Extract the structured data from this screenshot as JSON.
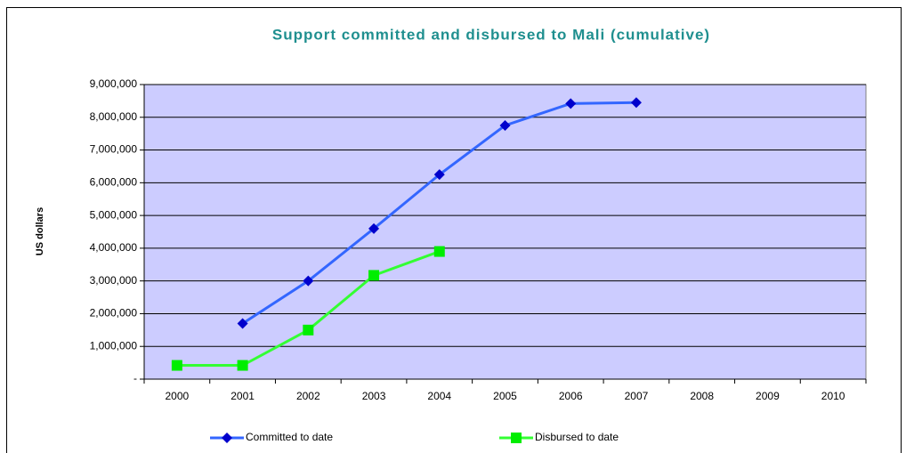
{
  "chart_data": {
    "type": "line",
    "title": "Support committed and disbursed to Mali (cumulative)",
    "y_label": "US dollars",
    "categories": [
      "2000",
      "2001",
      "2002",
      "2003",
      "2004",
      "2005",
      "2006",
      "2007",
      "2008",
      "2009",
      "2010"
    ],
    "series": [
      {
        "name": "Committed to date",
        "color": "#3366ff",
        "marker_color": "#0000cc",
        "marker": "diamond",
        "values": [
          null,
          1700000,
          3000000,
          4600000,
          6250000,
          7750000,
          8420000,
          8450000,
          null,
          null,
          null
        ]
      },
      {
        "name": "Disbursed to date",
        "color": "#33ff33",
        "marker_color": "#00ee00",
        "marker": "square",
        "values": [
          420000,
          420000,
          1500000,
          3170000,
          3900000,
          null,
          null,
          null,
          null,
          null,
          null
        ]
      }
    ],
    "ylim": [
      0,
      9000000
    ],
    "yticks": [
      {
        "value": 0,
        "label": "-"
      },
      {
        "value": 1000000,
        "label": "1,000,000"
      },
      {
        "value": 2000000,
        "label": "2,000,000"
      },
      {
        "value": 3000000,
        "label": "3,000,000"
      },
      {
        "value": 4000000,
        "label": "4,000,000"
      },
      {
        "value": 5000000,
        "label": "5,000,000"
      },
      {
        "value": 6000000,
        "label": "6,000,000"
      },
      {
        "value": 7000000,
        "label": "7,000,000"
      },
      {
        "value": 8000000,
        "label": "8,000,000"
      },
      {
        "value": 9000000,
        "label": "9,000,000"
      }
    ],
    "grid": true,
    "legend": "bottom",
    "plot_background": "#ccccff"
  }
}
